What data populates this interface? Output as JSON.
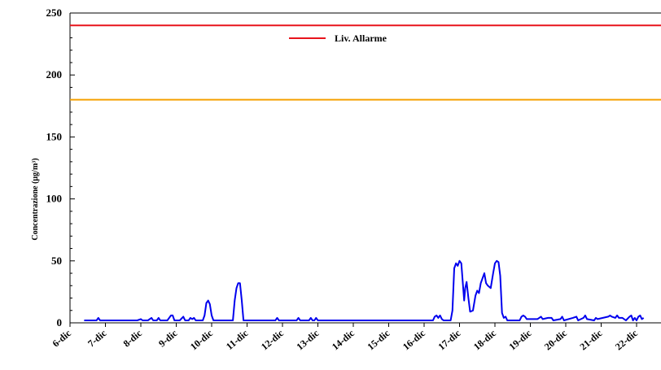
{
  "chart_data": {
    "type": "line",
    "xlabel": "",
    "ylabel": "Concentrazione (µg/m³)",
    "ylim": [
      0,
      250
    ],
    "yticks": [
      0,
      50,
      100,
      150,
      200,
      250
    ],
    "x_tick_labels": [
      "6-dic",
      "7-dic",
      "8-dic",
      "9-dic",
      "10-dic",
      "11-dic",
      "12-dic",
      "13-dic",
      "14-dic",
      "15-dic",
      "16-dic",
      "17-dic",
      "18-dic",
      "19-dic",
      "20-dic",
      "21-dic",
      "22-dic"
    ],
    "x_unit": "day index (0 = 6-dic)",
    "grid": false,
    "legend": {
      "placement": "top-center",
      "entries": [
        "Liv. Allarme"
      ]
    },
    "reference_lines": [
      {
        "name": "Liv. Allarme",
        "value": 240,
        "color": "#e8141c"
      },
      {
        "value": 180,
        "color": "#f5a000"
      }
    ],
    "series": [
      {
        "color": "#0000ee",
        "points": [
          [
            0.4,
            2
          ],
          [
            0.75,
            2
          ],
          [
            0.8,
            4
          ],
          [
            0.85,
            2
          ],
          [
            1.9,
            2
          ],
          [
            2.0,
            3
          ],
          [
            2.05,
            2
          ],
          [
            2.2,
            2
          ],
          [
            2.3,
            4
          ],
          [
            2.35,
            2
          ],
          [
            2.45,
            2
          ],
          [
            2.5,
            4
          ],
          [
            2.55,
            2
          ],
          [
            2.75,
            2
          ],
          [
            2.85,
            6
          ],
          [
            2.9,
            6
          ],
          [
            2.95,
            2
          ],
          [
            3.1,
            2
          ],
          [
            3.2,
            5
          ],
          [
            3.25,
            2
          ],
          [
            3.35,
            2
          ],
          [
            3.4,
            4
          ],
          [
            3.45,
            3
          ],
          [
            3.5,
            4
          ],
          [
            3.55,
            2
          ],
          [
            3.75,
            2
          ],
          [
            3.8,
            6
          ],
          [
            3.85,
            16
          ],
          [
            3.9,
            18
          ],
          [
            3.95,
            15
          ],
          [
            4.0,
            6
          ],
          [
            4.05,
            2
          ],
          [
            4.6,
            2
          ],
          [
            4.65,
            18
          ],
          [
            4.7,
            28
          ],
          [
            4.75,
            32
          ],
          [
            4.8,
            32
          ],
          [
            4.85,
            18
          ],
          [
            4.9,
            2
          ],
          [
            5.8,
            2
          ],
          [
            5.85,
            4
          ],
          [
            5.9,
            2
          ],
          [
            6.4,
            2
          ],
          [
            6.45,
            4
          ],
          [
            6.5,
            2
          ],
          [
            6.75,
            2
          ],
          [
            6.8,
            4
          ],
          [
            6.85,
            2
          ],
          [
            6.9,
            2
          ],
          [
            6.95,
            4
          ],
          [
            7.0,
            2
          ],
          [
            10.25,
            2
          ],
          [
            10.3,
            5
          ],
          [
            10.35,
            6
          ],
          [
            10.4,
            4
          ],
          [
            10.45,
            6
          ],
          [
            10.5,
            3
          ],
          [
            10.55,
            2
          ],
          [
            10.75,
            2
          ],
          [
            10.8,
            10
          ],
          [
            10.85,
            44
          ],
          [
            10.9,
            48
          ],
          [
            10.95,
            46
          ],
          [
            11.0,
            50
          ],
          [
            11.05,
            48
          ],
          [
            11.1,
            30
          ],
          [
            11.13,
            18
          ],
          [
            11.16,
            28
          ],
          [
            11.2,
            33
          ],
          [
            11.25,
            20
          ],
          [
            11.3,
            9
          ],
          [
            11.38,
            10
          ],
          [
            11.45,
            22
          ],
          [
            11.5,
            26
          ],
          [
            11.55,
            24
          ],
          [
            11.6,
            32
          ],
          [
            11.7,
            40
          ],
          [
            11.75,
            32
          ],
          [
            11.8,
            30
          ],
          [
            11.88,
            28
          ],
          [
            11.95,
            40
          ],
          [
            12.0,
            48
          ],
          [
            12.05,
            50
          ],
          [
            12.1,
            49
          ],
          [
            12.15,
            38
          ],
          [
            12.2,
            8
          ],
          [
            12.25,
            4
          ],
          [
            12.3,
            5
          ],
          [
            12.35,
            2
          ],
          [
            12.7,
            2
          ],
          [
            12.75,
            5
          ],
          [
            12.8,
            6
          ],
          [
            12.85,
            5
          ],
          [
            12.9,
            3
          ],
          [
            13.2,
            3
          ],
          [
            13.3,
            5
          ],
          [
            13.35,
            3
          ],
          [
            13.5,
            4
          ],
          [
            13.6,
            4
          ],
          [
            13.65,
            2
          ],
          [
            13.85,
            3
          ],
          [
            13.9,
            5
          ],
          [
            13.95,
            2
          ],
          [
            14.2,
            4
          ],
          [
            14.3,
            5
          ],
          [
            14.35,
            2
          ],
          [
            14.5,
            4
          ],
          [
            14.55,
            6
          ],
          [
            14.6,
            3
          ],
          [
            14.8,
            2
          ],
          [
            14.85,
            4
          ],
          [
            14.9,
            3
          ],
          [
            15.2,
            5
          ],
          [
            15.25,
            6
          ],
          [
            15.3,
            5
          ],
          [
            15.4,
            4
          ],
          [
            15.45,
            6
          ],
          [
            15.5,
            4
          ],
          [
            15.6,
            4
          ],
          [
            15.7,
            2
          ],
          [
            15.8,
            5
          ],
          [
            15.85,
            6
          ],
          [
            15.9,
            2
          ],
          [
            15.95,
            4
          ],
          [
            16.0,
            2
          ],
          [
            16.05,
            5
          ],
          [
            16.1,
            6
          ],
          [
            16.15,
            3
          ],
          [
            16.2,
            4
          ]
        ]
      }
    ]
  }
}
